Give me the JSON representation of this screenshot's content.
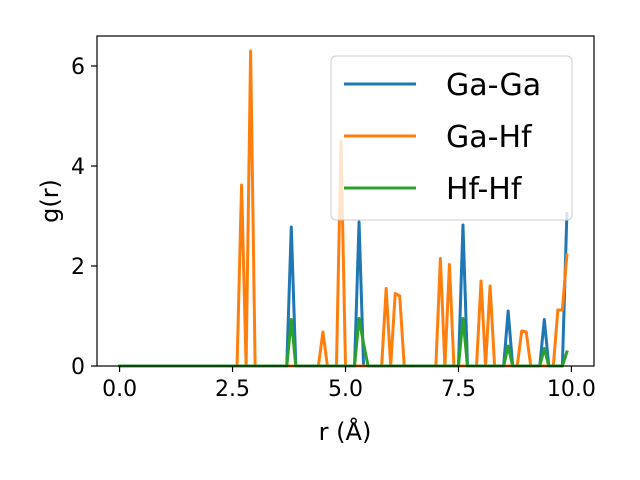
{
  "chart_data": {
    "type": "line",
    "xlabel": "r (Å)",
    "ylabel": "g(r)",
    "xlim": [
      -0.5,
      10.5
    ],
    "ylim": [
      0,
      6.6
    ],
    "xticks": [
      0.0,
      2.5,
      5.0,
      7.5,
      10.0
    ],
    "xtick_labels": [
      "0.0",
      "2.5",
      "5.0",
      "7.5",
      "10.0"
    ],
    "yticks": [
      0,
      2,
      4,
      6
    ],
    "ytick_labels": [
      "0",
      "2",
      "4",
      "6"
    ],
    "grid": false,
    "legend_position": "top-right",
    "series": [
      {
        "name": "Ga-Ga",
        "color": "#1f77b4",
        "x": [
          0.0,
          3.7,
          3.8,
          3.9,
          5.2,
          5.3,
          5.4,
          7.5,
          7.6,
          7.7,
          8.5,
          8.6,
          8.7,
          9.3,
          9.4,
          9.5,
          9.8,
          9.9
        ],
        "y": [
          0.0,
          0.0,
          2.78,
          0.0,
          0.0,
          2.88,
          0.0,
          0.0,
          2.82,
          0.0,
          0.0,
          1.1,
          0.0,
          0.0,
          0.93,
          0.0,
          0.0,
          3.05
        ]
      },
      {
        "name": "Ga-Hf",
        "color": "#ff7f0e",
        "x": [
          0.0,
          2.6,
          2.7,
          2.8,
          2.9,
          3.0,
          4.4,
          4.5,
          4.6,
          4.8,
          4.9,
          5.0,
          5.1,
          5.2,
          5.3,
          5.4,
          5.8,
          5.9,
          6.0,
          6.1,
          6.2,
          6.3,
          7.0,
          7.1,
          7.2,
          7.3,
          7.4,
          7.9,
          8.0,
          8.1,
          8.2,
          8.3,
          8.4,
          8.8,
          8.9,
          9.0,
          9.1,
          9.5,
          9.6,
          9.7,
          9.8,
          9.9
        ],
        "y": [
          0.0,
          0.0,
          3.62,
          0.0,
          6.3,
          0.0,
          0.0,
          0.68,
          0.0,
          0.0,
          4.5,
          0.0,
          0.0,
          0.0,
          0.0,
          0.0,
          0.0,
          1.55,
          0.0,
          1.45,
          1.4,
          0.0,
          0.0,
          2.15,
          0.0,
          2.03,
          0.0,
          0.0,
          1.7,
          0.0,
          1.6,
          0.0,
          0.0,
          0.0,
          0.7,
          0.68,
          0.0,
          0.0,
          0.0,
          1.12,
          1.12,
          2.22
        ]
      },
      {
        "name": "Hf-Hf",
        "color": "#2ca02c",
        "x": [
          0.0,
          3.7,
          3.8,
          3.9,
          5.2,
          5.3,
          5.4,
          5.5,
          7.5,
          7.6,
          7.7,
          8.5,
          8.6,
          8.7,
          9.3,
          9.4,
          9.5,
          9.8,
          9.9
        ],
        "y": [
          0.0,
          0.0,
          0.93,
          0.0,
          0.0,
          0.95,
          0.45,
          0.0,
          0.0,
          0.95,
          0.0,
          0.0,
          0.4,
          0.0,
          0.0,
          0.35,
          0.0,
          0.0,
          0.28
        ]
      }
    ]
  }
}
